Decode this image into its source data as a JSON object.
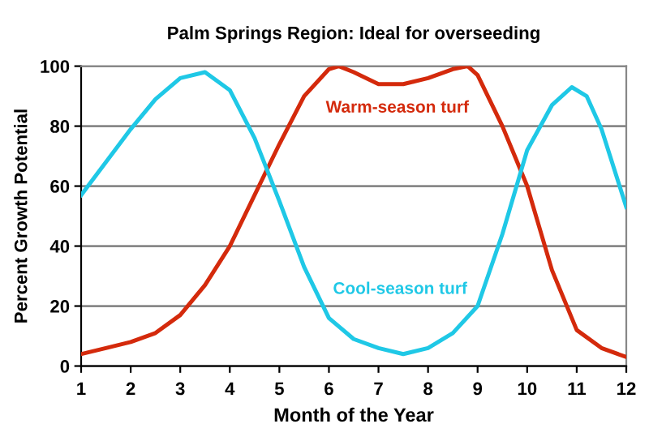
{
  "chart_data": {
    "type": "line",
    "title": "Palm Springs Region: Ideal for overseeding",
    "xlabel": "Month of the Year",
    "ylabel": "Percent Growth Potential",
    "xlim": [
      1,
      12
    ],
    "xticks": [
      1,
      2,
      3,
      4,
      5,
      6,
      7,
      8,
      9,
      10,
      11,
      12
    ],
    "ylim": [
      0,
      100
    ],
    "yticks": [
      0,
      20,
      40,
      60,
      80,
      100
    ],
    "grid": "y",
    "marker": "none",
    "line_style": "solid",
    "series": [
      {
        "name": "Warm-season turf",
        "color": "#d42a0c",
        "x": [
          1,
          1.5,
          2,
          2.5,
          3,
          3.5,
          4,
          4.5,
          5,
          5.5,
          6,
          6.2,
          6.5,
          7,
          7.5,
          8,
          8.5,
          8.8,
          9,
          9.5,
          10,
          10.5,
          11,
          11.5,
          12
        ],
        "values": [
          4,
          6,
          8,
          11,
          17,
          27,
          40,
          57,
          74,
          90,
          99,
          100,
          98,
          94,
          94,
          96,
          99,
          100,
          97,
          80,
          60,
          32,
          12,
          6,
          3
        ]
      },
      {
        "name": "Cool-season turf",
        "color": "#1fc8e6",
        "x": [
          1,
          1.5,
          2,
          2.5,
          3,
          3.5,
          4,
          4.5,
          5,
          5.5,
          6,
          6.5,
          7,
          7.5,
          8,
          8.5,
          9,
          9.5,
          10,
          10.5,
          10.9,
          11.2,
          11.5,
          12
        ],
        "values": [
          57,
          68,
          79,
          89,
          96,
          98,
          92,
          76,
          55,
          33,
          16,
          9,
          6,
          4,
          6,
          11,
          20,
          44,
          72,
          87,
          93,
          90,
          79,
          53
        ]
      }
    ]
  }
}
